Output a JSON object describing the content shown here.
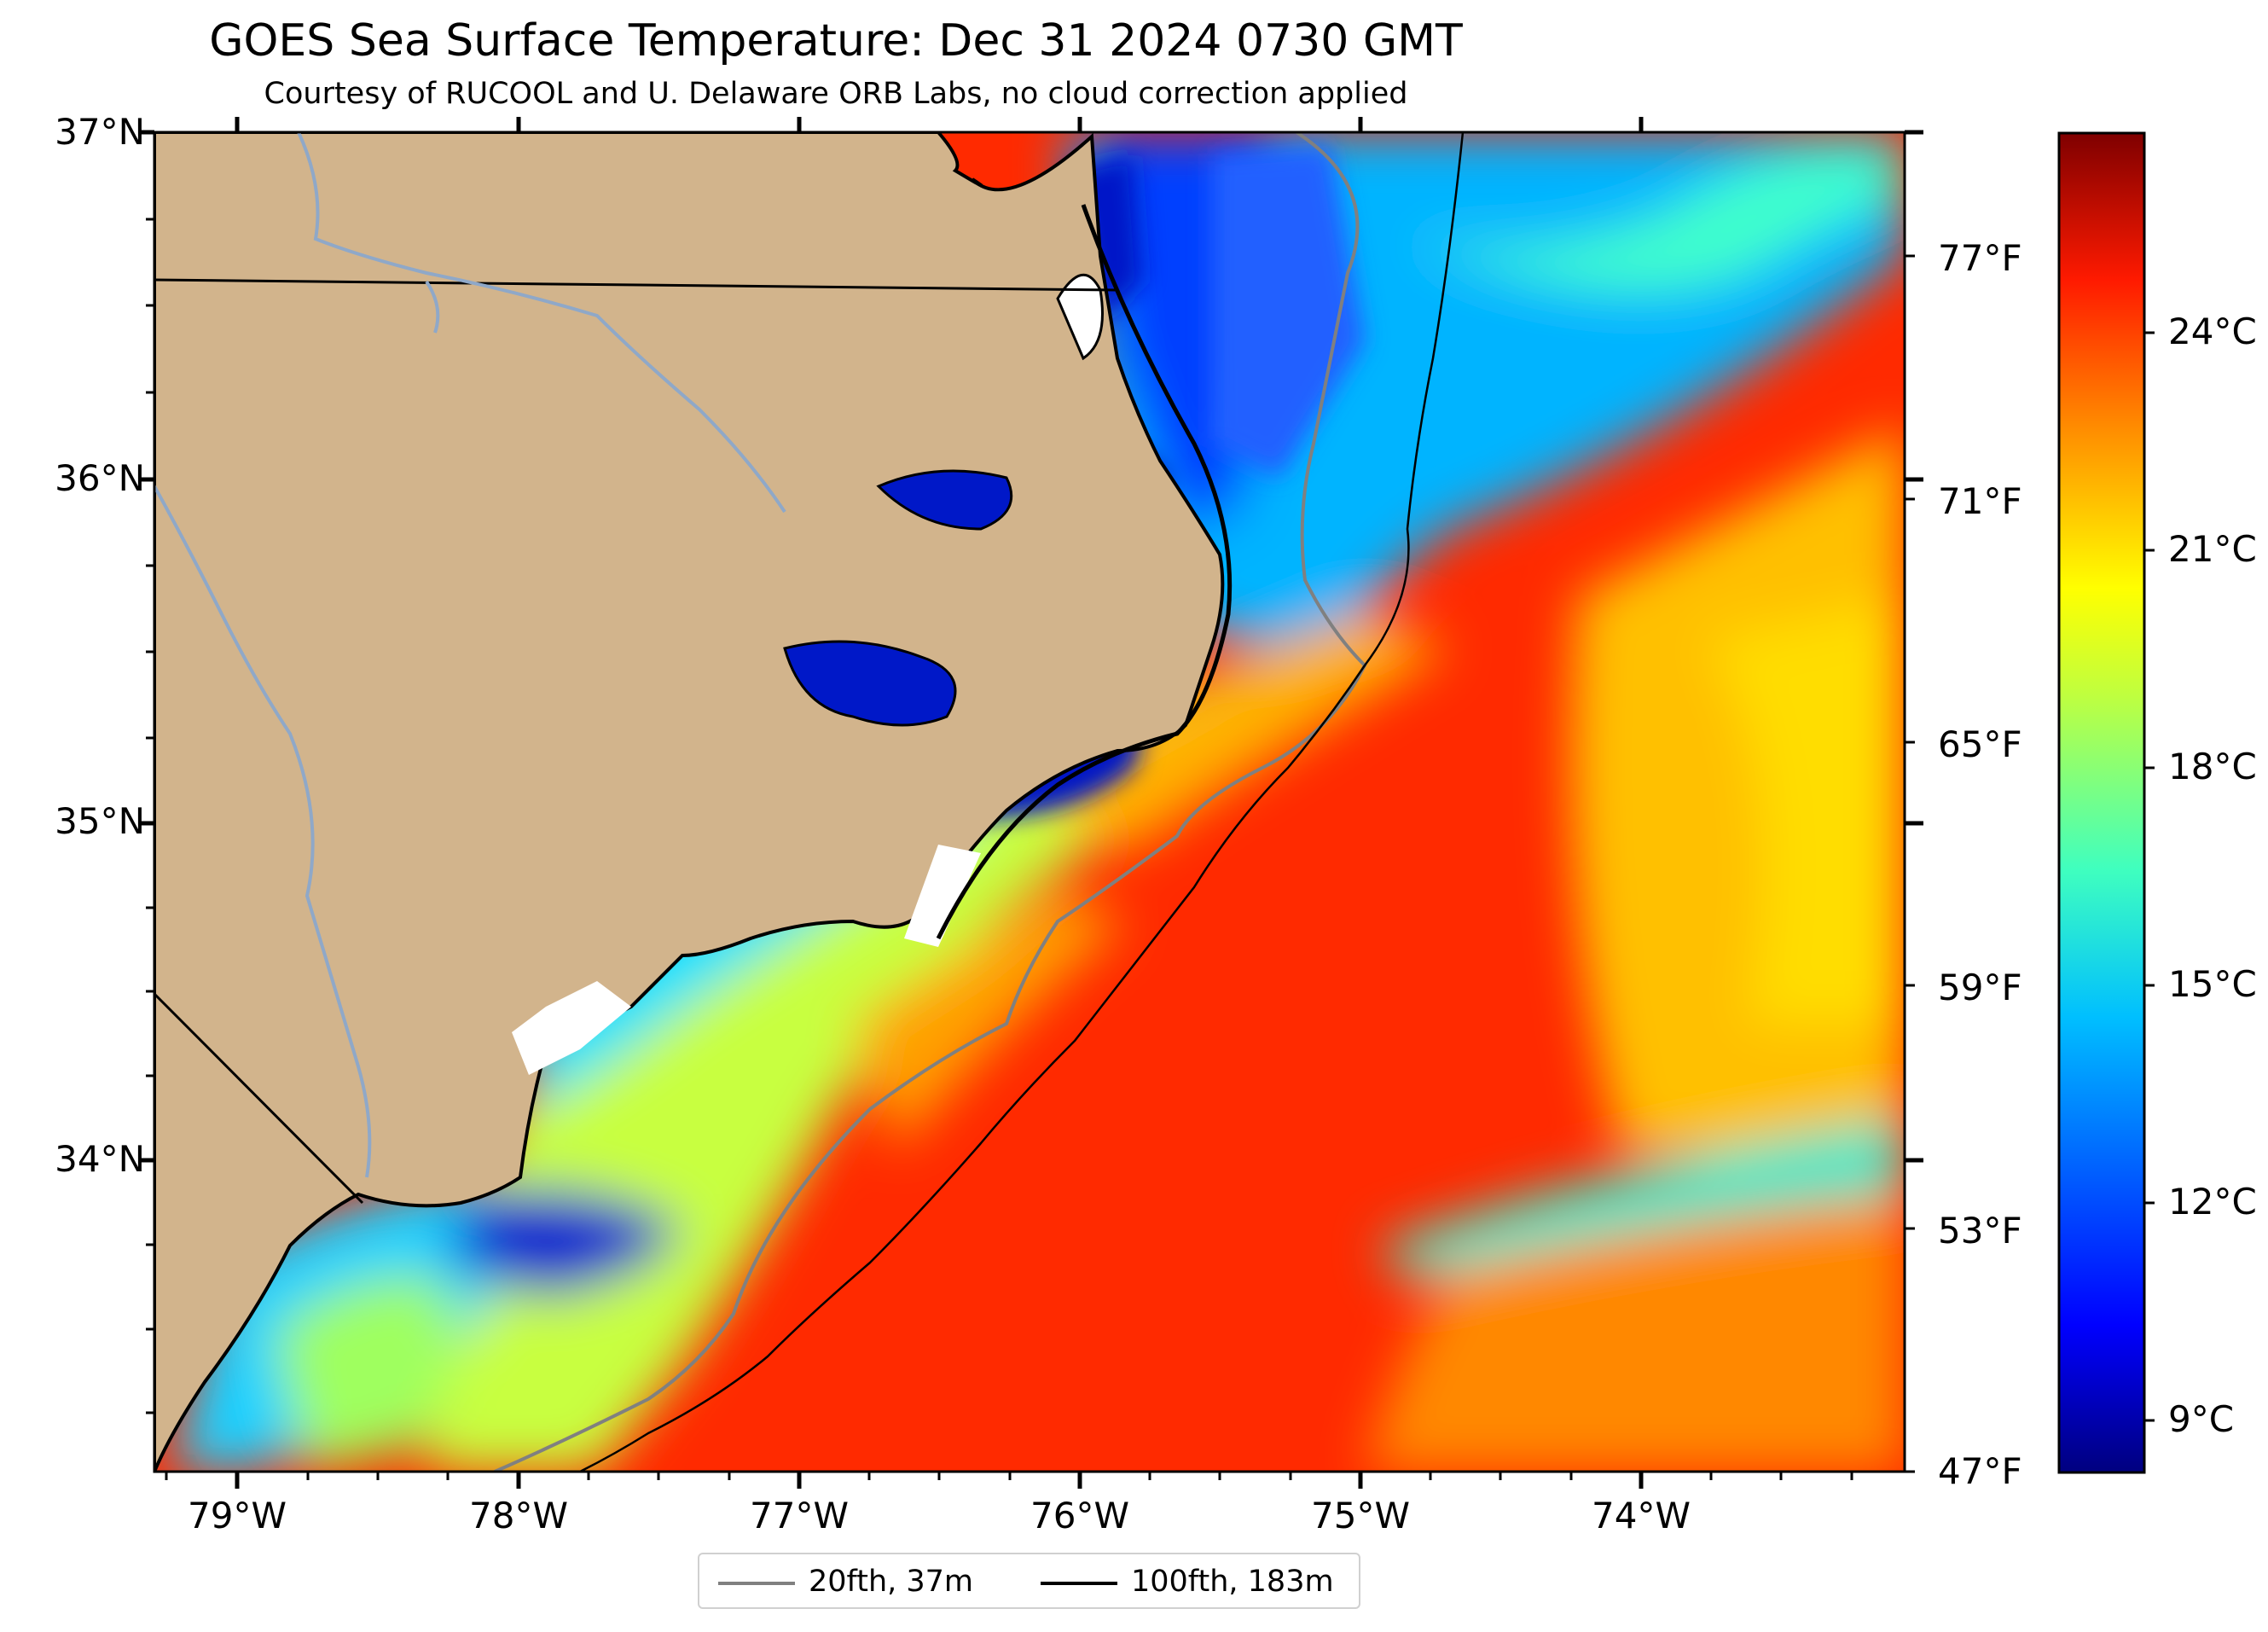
{
  "title": "GOES Sea Surface Temperature: Dec 31 2024 0730 GMT",
  "subtitle": "Courtesy of RUCOOL and U. Delaware ORB Labs, no cloud correction applied",
  "axes": {
    "lat_labels": [
      "37°N",
      "36°N",
      "35°N",
      "34°N"
    ],
    "lon_labels": [
      "79°W",
      "78°W",
      "77°W",
      "76°W",
      "75°W",
      "74°W"
    ]
  },
  "colorbar": {
    "fahrenheit_labels": [
      "77°F",
      "71°F",
      "65°F",
      "59°F",
      "53°F",
      "47°F"
    ],
    "celsius_labels": [
      "24°C",
      "21°C",
      "18°C",
      "15°C",
      "12°C",
      "9°C"
    ],
    "colormap": "jet",
    "colors": [
      "#00007f",
      "#0000ff",
      "#007fff",
      "#00ffff",
      "#7fff7f",
      "#ffff00",
      "#ff7f00",
      "#ff0000",
      "#7f0000"
    ]
  },
  "legend": {
    "items": [
      {
        "label": "20fth, 37m",
        "color": "#808080"
      },
      {
        "label": "100fth, 183m",
        "color": "#000000"
      }
    ]
  },
  "map": {
    "land_color": "#d2b48c",
    "river_color": "#8fa8c8",
    "region": "North Carolina coast"
  }
}
